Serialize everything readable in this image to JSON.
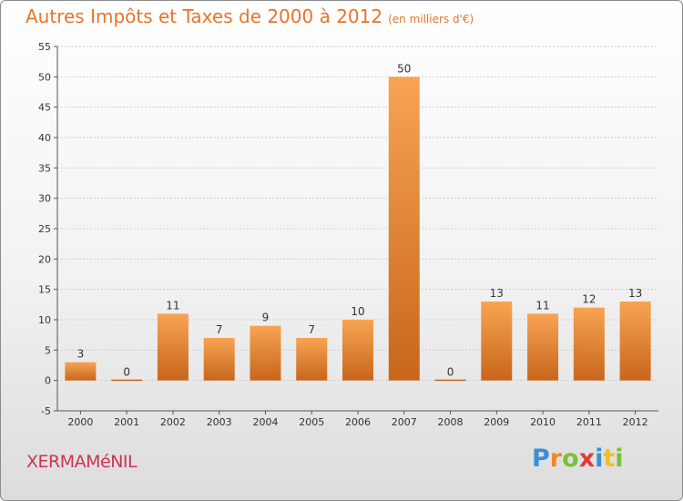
{
  "header": {
    "title": "Autres Impôts et Taxes de 2000 à 2012",
    "subtitle": "(en milliers d'€)"
  },
  "footer": {
    "commune": "XERMAMéNIL",
    "brand_letters": [
      "P",
      "r",
      "o",
      "x",
      "i",
      "t",
      "i"
    ],
    "brand_colors": [
      "#3a8fd6",
      "#f08a24",
      "#7cbf3a",
      "#e23a3a",
      "#3a8fd6",
      "#f0c020",
      "#7cbf3a"
    ]
  },
  "colors": {
    "bar_light": "#f7a453",
    "bar_dark": "#c8661c",
    "grid": "#cccccc",
    "axis": "#555555"
  },
  "chart_data": {
    "type": "bar",
    "title": "Autres Impôts et Taxes de 2000 à 2012",
    "subtitle": "(en milliers d'€)",
    "xlabel": "",
    "ylabel": "",
    "categories": [
      "2000",
      "2001",
      "2002",
      "2003",
      "2004",
      "2005",
      "2006",
      "2007",
      "2008",
      "2009",
      "2010",
      "2011",
      "2012"
    ],
    "values": [
      3,
      0,
      11,
      7,
      9,
      7,
      10,
      50,
      0,
      13,
      11,
      12,
      13
    ],
    "ylim": [
      -5,
      55
    ],
    "yticks": [
      -5,
      0,
      5,
      10,
      15,
      20,
      25,
      30,
      35,
      40,
      45,
      50,
      55
    ],
    "grid": true,
    "legend": "none"
  }
}
